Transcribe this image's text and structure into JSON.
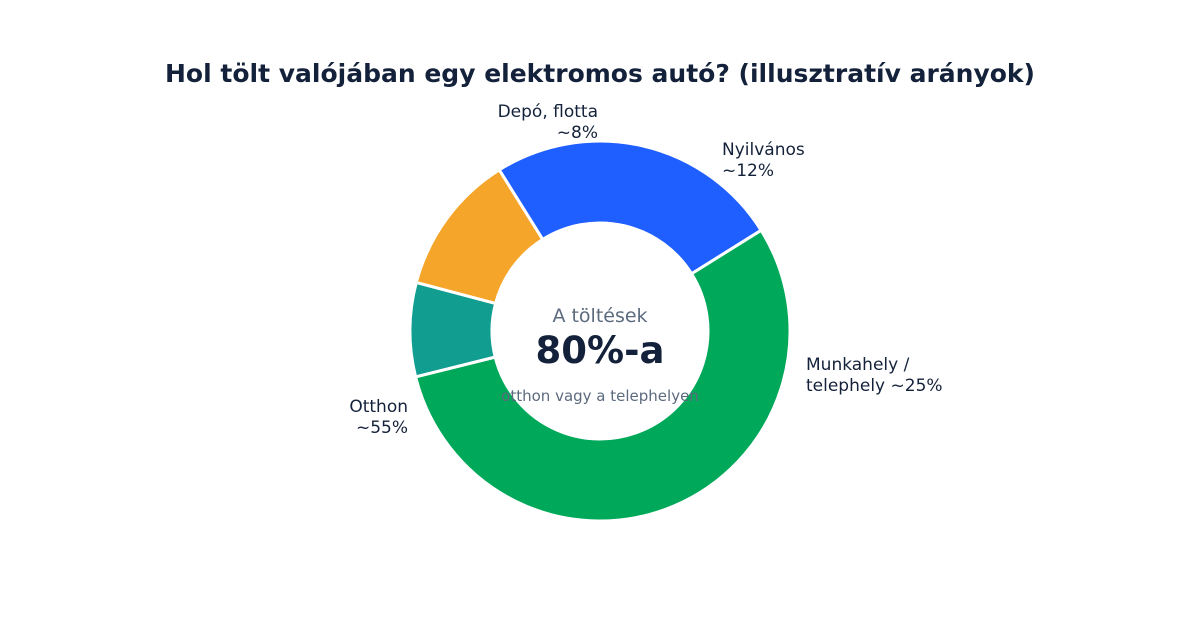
{
  "chart_data": {
    "type": "pie",
    "variant": "donut",
    "title": "Hol tölt valójában egy elektromos autó? (illusztratív arányok)",
    "start_angle_deg": 256,
    "direction": "clockwise",
    "slices": [
      {
        "label_lines": [
          "Depó, flotta",
          "~8%"
        ],
        "value": 8,
        "color": "#119e90"
      },
      {
        "label_lines": [
          "Nyilvános",
          "~12%"
        ],
        "value": 12,
        "color": "#f4a52a"
      },
      {
        "label_lines": [
          "Munkahely /",
          "telephely ~25%"
        ],
        "value": 25,
        "color": "#1f5fff"
      },
      {
        "label_lines": [
          "Otthon",
          "~55%"
        ],
        "value": 55,
        "color": "#00a85a"
      }
    ],
    "center_text": {
      "top": "A töltések",
      "big": "80%-a",
      "sub": "otthon vagy a telephelyen"
    }
  }
}
